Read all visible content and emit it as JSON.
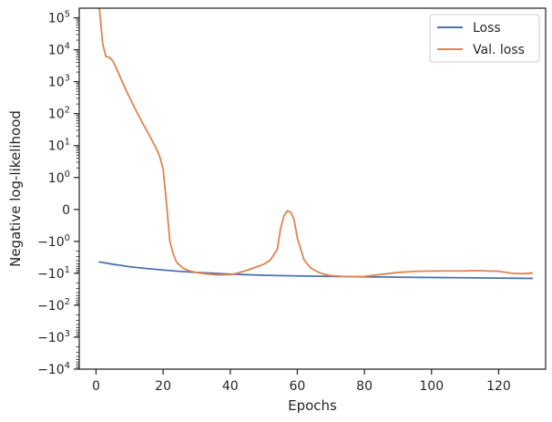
{
  "chart_data": {
    "type": "line",
    "xlabel": "Epochs",
    "ylabel": "Negative log-likelihood",
    "yscale": "symlog",
    "linthresh": 1,
    "xlim": [
      -5,
      134
    ],
    "ylim": [
      -10000,
      200000
    ],
    "grid": false,
    "legend_position": "top-right",
    "x_ticks": [
      0,
      20,
      40,
      60,
      80,
      100,
      120
    ],
    "y_ticks": [
      {
        "value": 100000,
        "label": "10^5"
      },
      {
        "value": 10000,
        "label": "10^4"
      },
      {
        "value": 1000,
        "label": "10^3"
      },
      {
        "value": 100,
        "label": "10^2"
      },
      {
        "value": 10,
        "label": "10^1"
      },
      {
        "value": 1,
        "label": "10^0"
      },
      {
        "value": 0,
        "label": "0"
      },
      {
        "value": -1,
        "label": "−10^0"
      },
      {
        "value": -10,
        "label": "−10^1"
      },
      {
        "value": -100,
        "label": "−10^2"
      },
      {
        "value": -1000,
        "label": "−10^3"
      },
      {
        "value": -10000,
        "label": "−10^4"
      }
    ],
    "series": [
      {
        "name": "Loss",
        "color": "#4c72b0",
        "x": [
          1,
          5,
          10,
          15,
          20,
          25,
          30,
          40,
          50,
          60,
          70,
          80,
          90,
          100,
          110,
          120,
          130
        ],
        "y": [
          -4.4,
          -5.2,
          -6.2,
          -7.1,
          -7.9,
          -8.7,
          -9.4,
          -10.6,
          -11.5,
          -12.1,
          -12.5,
          -12.9,
          -13.2,
          -13.5,
          -13.8,
          -14.1,
          -14.4
        ]
      },
      {
        "name": "Val. loss",
        "color": "#dd8452",
        "x": [
          1,
          2,
          3,
          4,
          5,
          6,
          8,
          10,
          12,
          14,
          16,
          18,
          19,
          20,
          21,
          22,
          23,
          24,
          26,
          28,
          30,
          33,
          36,
          40,
          42,
          45,
          48,
          50,
          52,
          54,
          55,
          56,
          57,
          58,
          59,
          60,
          62,
          64,
          66,
          68,
          70,
          73,
          76,
          80,
          85,
          90,
          95,
          100,
          105,
          110,
          113,
          116,
          120,
          124,
          127,
          130
        ],
        "y": [
          200000,
          15000,
          6000,
          5800,
          4500,
          2700,
          900,
          320,
          120,
          48,
          20,
          8,
          4.5,
          1.8,
          0.2,
          -1.0,
          -2.4,
          -4.5,
          -7.0,
          -8.5,
          -9.5,
          -10.5,
          -11.2,
          -11.0,
          -10.0,
          -8.0,
          -6.2,
          -5.2,
          -3.8,
          -1.8,
          -0.6,
          -0.2,
          -0.05,
          -0.08,
          -0.3,
          -0.9,
          -3.8,
          -6.8,
          -9.0,
          -10.7,
          -11.8,
          -12.4,
          -12.8,
          -12.5,
          -10.8,
          -9.4,
          -8.7,
          -8.5,
          -8.4,
          -8.4,
          -8.2,
          -8.4,
          -8.6,
          -10.0,
          -10.3,
          -9.8
        ]
      }
    ]
  }
}
